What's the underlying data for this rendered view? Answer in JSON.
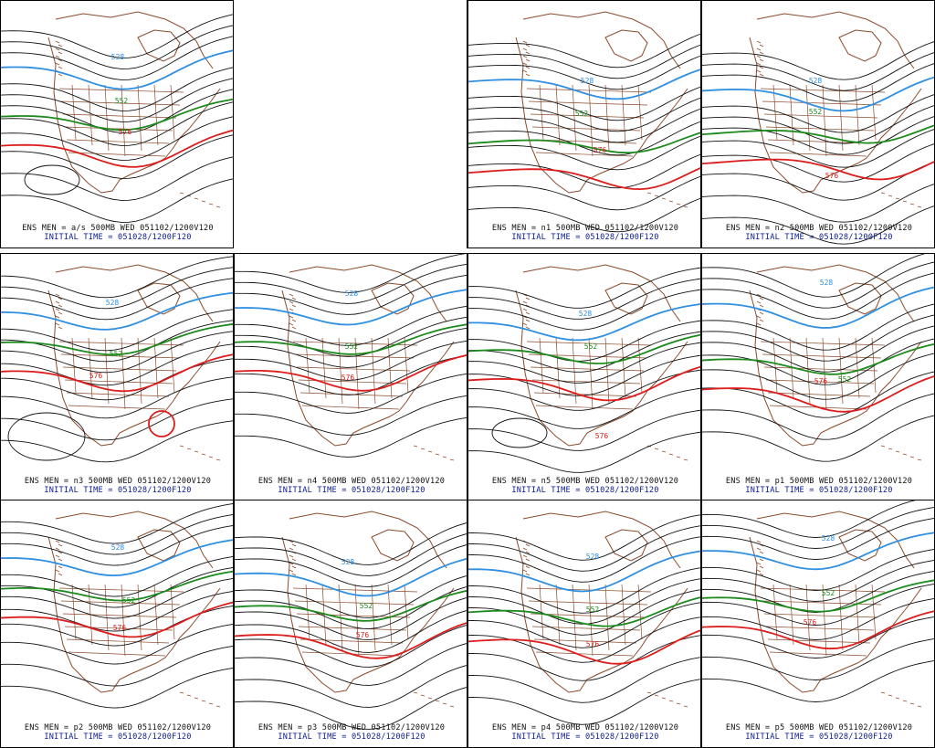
{
  "colors": {
    "c528": "#2f8fe0",
    "c552": "#1c8a1c",
    "c576": "#dd1c1c",
    "other": "#111111",
    "geo": "#8b4a2b",
    "initial_text": "#0b1a8f"
  },
  "contour_values": {
    "c528": "528",
    "c552": "552",
    "c576": "576"
  },
  "panels": [
    {
      "id": "as",
      "cap1": "ENS MEN = a/s 500MB WED 051102/1200V120",
      "cap2": "INITIAL TIME = 051028/1200F120"
    },
    {
      "id": "n1",
      "cap1": "ENS MEN = n1 500MB WED 051102/1200V120",
      "cap2": "INITIAL TIME = 051028/1200F120"
    },
    {
      "id": "n2",
      "cap1": "ENS MEN = n2 500MB WED 051102/1200V120",
      "cap2": "INITIAL TIME = 051028/1200F120"
    },
    {
      "id": "n3",
      "cap1": "ENS MEN = n3 500MB WED 051102/1200V120",
      "cap2": "INITIAL TIME = 051028/1200F120"
    },
    {
      "id": "n4",
      "cap1": "ENS MEN = n4 500MB WED 051102/1200V120",
      "cap2": "INITIAL TIME = 051028/1200F120"
    },
    {
      "id": "n5",
      "cap1": "ENS MEN = n5 500MB WED 051102/1200V120",
      "cap2": "INITIAL TIME = 051028/1200F120"
    },
    {
      "id": "p1",
      "cap1": "ENS MEN = p1 500MB WED 051102/1200V120",
      "cap2": "INITIAL TIME = 051028/1200F120"
    },
    {
      "id": "p2",
      "cap1": "ENS MEN = p2 500MB WED 051102/1200V120",
      "cap2": "INITIAL TIME = 051028/1200F120"
    },
    {
      "id": "p3",
      "cap1": "ENS MEN = p3 500MB WED 051102/1200V120",
      "cap2": "INITIAL TIME = 051028/1200F120"
    },
    {
      "id": "p4",
      "cap1": "ENS MEN = p4 500MB WED 051102/1200V120",
      "cap2": "INITIAL TIME = 051028/1200F120"
    },
    {
      "id": "p5",
      "cap1": "ENS MEN = p5 500MB WED 051102/1200V120",
      "cap2": "INITIAL TIME = 051028/1200F120"
    }
  ]
}
